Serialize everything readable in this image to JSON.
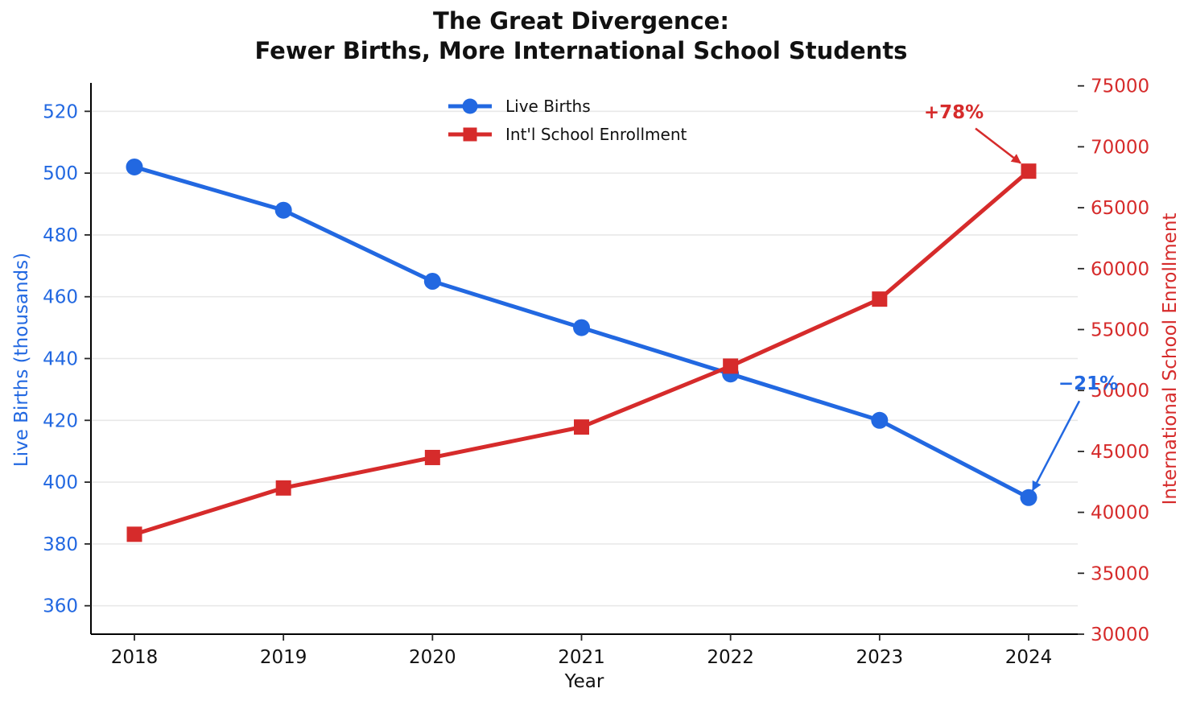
{
  "title": {
    "line1": "The Great Divergence:",
    "line2": "Fewer Births, More International School Students"
  },
  "axes": {
    "x_label": "Year",
    "left_label": "Live Births (thousands)",
    "right_label": "International School Enrollment",
    "x_ticks": [
      2018,
      2019,
      2020,
      2021,
      2022,
      2023,
      2024
    ],
    "left_ticks": [
      360,
      380,
      400,
      420,
      440,
      460,
      480,
      500,
      520
    ],
    "right_ticks": [
      30000,
      35000,
      40000,
      45000,
      50000,
      55000,
      60000,
      65000,
      70000,
      75000
    ]
  },
  "legend": {
    "items": [
      {
        "label": "Live Births",
        "marker": "circle",
        "color": "#2268e1"
      },
      {
        "label": "Int'l School Enrollment",
        "marker": "square",
        "color": "#d62b2b"
      }
    ]
  },
  "annotations": [
    {
      "text": "+78%",
      "anchor": "enrollment-2024",
      "color": "#d62b2b"
    },
    {
      "text": "−21%",
      "anchor": "births-2024",
      "color": "#2268e1"
    }
  ],
  "colors": {
    "births": "#2268e1",
    "enrollment": "#d62b2b",
    "grid": "#e8e8e8",
    "spine": "#000000",
    "tick": "#262626"
  },
  "chart_data": {
    "type": "line",
    "title": "The Great Divergence: Fewer Births, More International School Students",
    "xlabel": "Year",
    "ylabel_left": "Live Births (thousands)",
    "ylabel_right": "International School Enrollment",
    "x": [
      2018,
      2019,
      2020,
      2021,
      2022,
      2023,
      2024
    ],
    "series": [
      {
        "name": "Live Births",
        "axis": "left",
        "marker": "circle",
        "color": "#2268e1",
        "values": [
          502,
          488,
          465,
          450,
          435,
          420,
          395
        ]
      },
      {
        "name": "Int'l School Enrollment",
        "axis": "right",
        "marker": "square",
        "color": "#d62b2b",
        "values": [
          38200,
          42000,
          44500,
          47000,
          52000,
          57500,
          68000
        ]
      }
    ],
    "ylim_left": [
      350.8,
      529.2
    ],
    "ylim_right": [
      30000,
      75244
    ],
    "grid": true,
    "legend_position": "upper center"
  }
}
